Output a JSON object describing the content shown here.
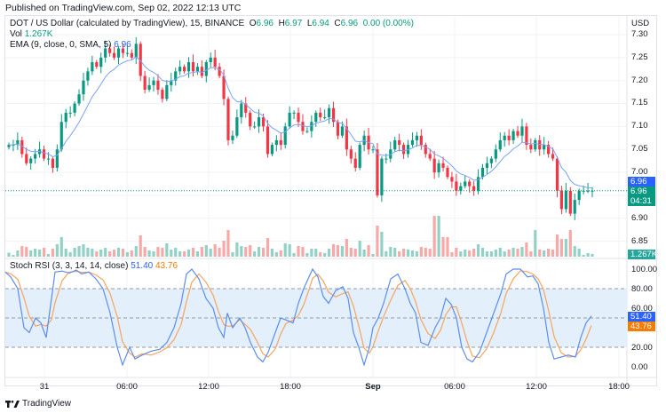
{
  "header": {
    "published": "Published on TradingView.com, Sep 02, 2022 12:13 UTC"
  },
  "legend": {
    "symbol": "DOT / US Dollar (calculated by TradingView), 15, BINANCE",
    "o_label": "O",
    "o": "6.96",
    "h_label": "H",
    "h": "6.97",
    "l_label": "L",
    "l": "6.94",
    "c_label": "C",
    "c": "6.96",
    "change": "0.00 (0.00%)",
    "vol_label": "Vol",
    "vol": "1.267K",
    "ema_label": "EMA (9, close, 0, SMA, 5)",
    "ema": "6.96",
    "stoch_label": "Stoch RSI (3, 3, 14, 14, close)",
    "stoch_k": "51.40",
    "stoch_d": "43.76"
  },
  "price_axis": {
    "currency": "USD",
    "ticks": [
      "7.30",
      "7.25",
      "7.20",
      "7.15",
      "7.10",
      "7.05",
      "7.00",
      "6.90",
      "6.85"
    ],
    "ema_badge": "6.96",
    "price_badge": "6.96",
    "countdown": "04:31",
    "vol_badge": "1.267K"
  },
  "stoch_axis": {
    "ticks": [
      "100.00",
      "80.00",
      "60.00",
      "20.00",
      "0.00"
    ],
    "k_badge": "51.40",
    "d_badge": "43.76"
  },
  "time_axis": {
    "labels": [
      "31",
      "06:00",
      "12:00",
      "18:00",
      "Sep",
      "06:00",
      "12:00",
      "18:00"
    ]
  },
  "footer": {
    "brand": "TradingView"
  },
  "colors": {
    "up": "#089981",
    "down": "#f23645",
    "up_vol": "#92d2c6",
    "down_vol": "#f7a9a7",
    "ema": "#7aa3f5",
    "stoch_k": "#5b8def",
    "stoch_d": "#f7a35c",
    "band": "#e3f0fc"
  },
  "chart_data": [
    {
      "type": "candlestick",
      "title": "DOT / US Dollar (calculated by TradingView), 15, BINANCE",
      "timeframe": "15m",
      "ylabel": "USD",
      "ylim": [
        6.82,
        7.32
      ],
      "x_ticks": [
        "31",
        "06:00",
        "12:00",
        "18:00",
        "Sep",
        "06:00",
        "12:00",
        "18:00"
      ],
      "y_ticks": [
        7.3,
        7.25,
        7.2,
        7.15,
        7.1,
        7.05,
        7.0,
        6.9,
        6.85
      ],
      "last": {
        "open": 6.96,
        "high": 6.97,
        "low": 6.94,
        "close": 6.96,
        "volume": "1.267K",
        "ema9": 6.96
      },
      "close_path": [
        7.06,
        7.06,
        7.07,
        7.04,
        7.02,
        7.03,
        7.04,
        7.05,
        7.03,
        7.03,
        7.01,
        7.05,
        7.11,
        7.13,
        7.13,
        7.15,
        7.17,
        7.2,
        7.22,
        7.24,
        7.23,
        7.25,
        7.27,
        7.26,
        7.25,
        7.27,
        7.26,
        7.26,
        7.25,
        7.28,
        7.21,
        7.18,
        7.19,
        7.2,
        7.18,
        7.16,
        7.19,
        7.2,
        7.22,
        7.23,
        7.22,
        7.24,
        7.22,
        7.23,
        7.21,
        7.24,
        7.25,
        7.23,
        7.21,
        7.16,
        7.07,
        7.08,
        7.12,
        7.15,
        7.13,
        7.1,
        7.1,
        7.12,
        7.1,
        7.04,
        7.06,
        7.07,
        7.06,
        7.1,
        7.13,
        7.13,
        7.11,
        7.09,
        7.09,
        7.11,
        7.13,
        7.12,
        7.12,
        7.14,
        7.11,
        7.08,
        7.1,
        7.05,
        7.03,
        7.01,
        7.06,
        7.08,
        7.05,
        7.05,
        6.95,
        7.03,
        7.03,
        7.05,
        7.07,
        7.06,
        7.04,
        7.06,
        7.07,
        7.08,
        7.06,
        7.04,
        7.03,
        7.0,
        7.02,
        7.01,
        6.99,
        6.98,
        6.96,
        6.97,
        6.98,
        6.97,
        6.96,
        6.99,
        7.01,
        7.02,
        7.03,
        7.05,
        7.07,
        7.08,
        7.07,
        7.09,
        7.08,
        7.1,
        7.06,
        7.05,
        7.07,
        7.05,
        7.06,
        7.04,
        7.03,
        6.96,
        6.92,
        6.96,
        6.91,
        6.94,
        6.96,
        6.96,
        6.96,
        6.96
      ],
      "volume_note": "Volume bars at bottom of price pane; spikes near 22:30 Aug 31 and the latest bars."
    },
    {
      "type": "line",
      "title": "Stoch RSI (3, 3, 14, 14, close)",
      "ylim": [
        0,
        100
      ],
      "y_ticks": [
        100,
        80,
        60,
        20,
        0
      ],
      "bands": {
        "upper": 80,
        "middle": 50,
        "lower": 20
      },
      "series": [
        {
          "name": "K",
          "last": 51.4
        },
        {
          "name": "D",
          "last": 43.76
        }
      ]
    }
  ]
}
